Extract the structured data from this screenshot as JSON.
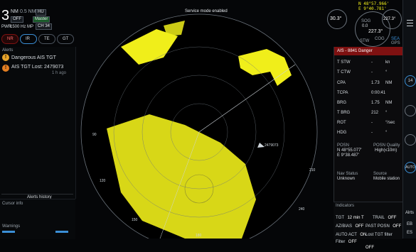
{
  "header": {
    "range_value": "3",
    "range_unit": "NM",
    "range_sub": "0.5 NM",
    "mode_chip": "HU",
    "pwr_label": "PWR",
    "freq_label": "1500 Hz",
    "mp_label": "MP",
    "channel_label": "CH 34",
    "offset_chip": "OFF",
    "master_chip": "Master",
    "status_message": "Service mode enabled",
    "position_line1": "N 48°57.966'",
    "position_line2": "E 9°40.781'",
    "speed_value": "30.3°",
    "sog_label": "SOG",
    "sog_value": "0.0",
    "stw_label": "STW",
    "cog_value": "227.3°",
    "cog_label": "COG",
    "hdg_value": "227.3°",
    "ref_label": "SEA",
    "gps_label": "GPS"
  },
  "toolbar_buttons": [
    {
      "label": "NR"
    },
    {
      "label": "IR"
    },
    {
      "label": "TE"
    },
    {
      "label": "GT"
    }
  ],
  "alerts": {
    "title": "Alerts",
    "items": [
      {
        "text": "Dangerous AIS TGT",
        "sub": ""
      },
      {
        "text": "AIS TGT Lost: 2479073",
        "sub": "1 h ago"
      }
    ],
    "footer_button": "Alerts history",
    "cursor_label": "Cursor info",
    "warnings_label": "Warnings"
  },
  "target": {
    "header": "AIS - 8841 Danger",
    "rows": [
      {
        "label": "T STW",
        "value": "-",
        "unit": "kn"
      },
      {
        "label": "T CTW",
        "value": "-",
        "unit": "°"
      },
      {
        "label": "CPA",
        "value": "1.73",
        "unit": "NM"
      },
      {
        "label": "TCPA",
        "value": "0:00:41",
        "unit": ""
      },
      {
        "label": "BRG",
        "value": "1.75",
        "unit": "NM"
      },
      {
        "label": "T BRG",
        "value": "212",
        "unit": "°"
      },
      {
        "label": "ROT",
        "value": "-",
        "unit": "°/sec"
      },
      {
        "label": "HDG",
        "value": "-",
        "unit": "°"
      }
    ],
    "posn_label": "POSN",
    "posn_value1": "N 48°55.077'",
    "posn_value2": "E 9°38.487'",
    "quality_label": "POSN Quality",
    "quality_value": "High(≤10m)",
    "nav_status_label": "Nav Status",
    "nav_status_value": "Unknown",
    "source_label": "Source",
    "source_value": "Mobile station"
  },
  "indicators": {
    "title": "Indicators",
    "items": [
      {
        "label": "TGT",
        "value": "12 min T"
      },
      {
        "label": "TRAIL",
        "value": "OFF"
      },
      {
        "label": "AZ/BIAS",
        "value": "OFF"
      },
      {
        "label": "PAST POSN",
        "value": "OFF"
      },
      {
        "label": "AUTO ACT",
        "value": "ON"
      },
      {
        "label": "Lost TGT filter",
        "value": "OFF"
      }
    ],
    "filter_label": "Filter",
    "filter_value": "OFF"
  },
  "radar": {
    "bearing_labels": [
      "90",
      "120",
      "150",
      "180",
      "210",
      "240"
    ],
    "target_label": "2479073",
    "range_marks": [
      "0.5",
      "1.0",
      "1.5",
      "2.0",
      "2.5"
    ]
  },
  "sidebar": {
    "menu_icon": "menu-icon",
    "buttons": [
      "14",
      "",
      "",
      "AUTO"
    ],
    "footer_labels": [
      "Alrts",
      "EB",
      "ES"
    ]
  },
  "colors": {
    "echo": "#f0ee1a",
    "alert_red": "#7e1111",
    "accent_blue": "#3b8fd6",
    "warning_amber": "#e8a42a"
  }
}
